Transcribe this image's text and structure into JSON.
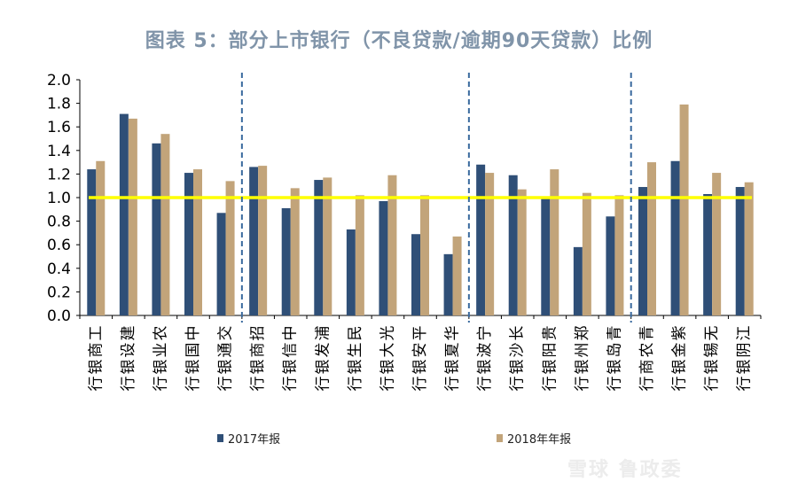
{
  "chart_data": {
    "type": "bar",
    "title": "图表 5：部分上市银行（不良贷款/逾期90天贷款）比例",
    "categories": [
      "工商银行",
      "建设银行",
      "农业银行",
      "中国银行",
      "交通银行",
      "招商银行",
      "中信银行",
      "浦发银行",
      "民生银行",
      "光大银行",
      "平安银行",
      "华夏银行",
      "宁波银行",
      "长沙银行",
      "贵阳银行",
      "郑州银行",
      "青岛银行",
      "青农商行",
      "紫金银行",
      "无锡银行",
      "江阴银行"
    ],
    "series": [
      {
        "name": "2017年报",
        "color": "#2f4f77",
        "values": [
          1.24,
          1.71,
          1.46,
          1.21,
          0.87,
          1.26,
          0.91,
          1.15,
          0.73,
          0.97,
          0.69,
          0.52,
          1.28,
          1.19,
          1.0,
          0.58,
          0.84,
          1.09,
          1.31,
          1.03,
          1.09
        ]
      },
      {
        "name": "2018年年报",
        "color": "#c2a47a",
        "values": [
          1.31,
          1.67,
          1.54,
          1.24,
          1.14,
          1.27,
          1.08,
          1.17,
          1.02,
          1.19,
          1.02,
          0.67,
          1.21,
          1.07,
          1.24,
          1.04,
          1.02,
          1.3,
          1.79,
          1.21,
          1.13
        ]
      }
    ],
    "yticks": [
      "2.0",
      "1.8",
      "1.6",
      "1.4",
      "1.2",
      "1.0",
      "0.8",
      "0.6",
      "0.4",
      "0.2",
      "0.0"
    ],
    "ylim": [
      0,
      2.0
    ],
    "reference_line": {
      "value": 1.0,
      "color": "#ffff00"
    },
    "group_dividers_after_index": [
      4,
      11,
      16
    ],
    "legend_position": "bottom"
  },
  "watermark": "雪球 鲁政委"
}
